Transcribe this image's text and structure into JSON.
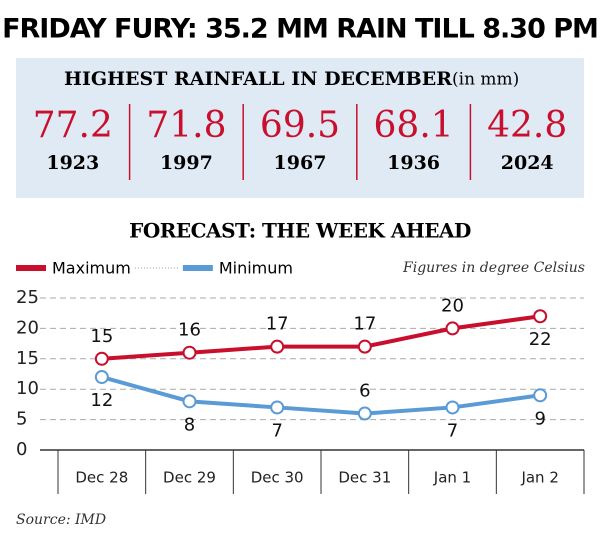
{
  "header": {
    "title": "FRIDAY FURY: 35.2 MM RAIN TILL 8.30 PM"
  },
  "rainfall": {
    "title": "HIGHEST RAINFALL IN DECEMBER",
    "unit": "(in mm)",
    "items": [
      {
        "value": 77.2,
        "year": 1923
      },
      {
        "value": 71.8,
        "year": 1997
      },
      {
        "value": 69.5,
        "year": 1967
      },
      {
        "value": 68.1,
        "year": 1936
      },
      {
        "value": 42.8,
        "year": 2024
      }
    ]
  },
  "chart_data": {
    "type": "line",
    "title": "FORECAST: THE WEEK AHEAD",
    "note": "Figures in degree Celsius",
    "categories": [
      "Dec 28",
      "Dec 29",
      "Dec 30",
      "Dec 31",
      "Jan 1",
      "Jan 2"
    ],
    "series": [
      {
        "name": "Maximum",
        "color": "#c8102e",
        "values": [
          15,
          16,
          17,
          17,
          20,
          22
        ]
      },
      {
        "name": "Minimum",
        "color": "#5b9bd5",
        "values": [
          12,
          8,
          7,
          6,
          7,
          9
        ]
      }
    ],
    "ylim": [
      0,
      25
    ],
    "yticks": [
      0,
      5,
      10,
      15,
      20,
      25
    ],
    "grid": true
  },
  "source": "Source: IMD"
}
